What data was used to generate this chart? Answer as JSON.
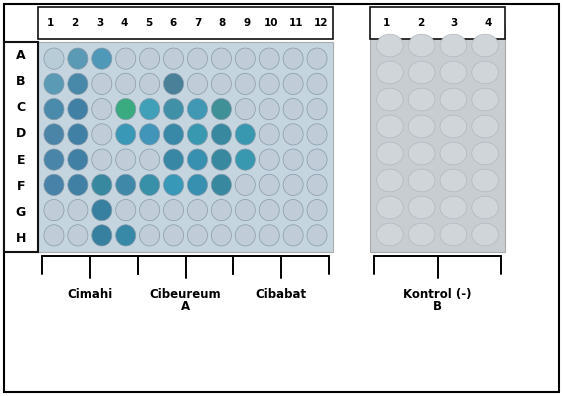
{
  "fig_width": 5.63,
  "fig_height": 3.96,
  "bg_color": "#ffffff",
  "col_labels_a": [
    "1",
    "2",
    "3",
    "4",
    "5",
    "6",
    "7",
    "8",
    "9",
    "10",
    "11",
    "12"
  ],
  "col_labels_b": [
    "1",
    "2",
    "3",
    "4"
  ],
  "row_labels": [
    "A",
    "B",
    "C",
    "D",
    "E",
    "F",
    "G",
    "H"
  ],
  "plate_a_bg": "#c5d5df",
  "plate_b_bg": "#c8cdd2",
  "well_colors_a": [
    [
      "#b8ccd8",
      "#5a9ab5",
      "#5098b8",
      "#c0cdd8",
      "#c0cdd8",
      "#c0cdd8",
      "#c0cdd8",
      "#c0cdd8",
      "#c0cdd8",
      "#c0cdd8",
      "#c0cdd8",
      "#c0cdd8"
    ],
    [
      "#5a9ab5",
      "#4888a8",
      "#c0cdd8",
      "#c0cdd8",
      "#c0cdd8",
      "#4a8098",
      "#c0cdd8",
      "#c0cdd8",
      "#c0cdd8",
      "#c0cdd8",
      "#c0cdd8",
      "#c0cdd8"
    ],
    [
      "#4a8aaa",
      "#4080a5",
      "#c0cdd8",
      "#3aaa80",
      "#40a0b8",
      "#4090a8",
      "#4098b5",
      "#409098",
      "#c0cdd8",
      "#c0cdd8",
      "#c0cdd8",
      "#c0cdd8"
    ],
    [
      "#4a85a8",
      "#4080a5",
      "#c0cdd8",
      "#3898b5",
      "#4095b8",
      "#3888a8",
      "#3898b0",
      "#3888a0",
      "#3898b0",
      "#c0cdd8",
      "#c0cdd8",
      "#c0cdd8"
    ],
    [
      "#4885a8",
      "#4080a5",
      "#c0cdd8",
      "#c0cdd8",
      "#c0cdd8",
      "#3888a5",
      "#3890b0",
      "#3888a0",
      "#3898b0",
      "#c0cdd8",
      "#c0cdd8",
      "#c0cdd8"
    ],
    [
      "#4882a8",
      "#4080a5",
      "#3888a0",
      "#4088a8",
      "#3890a8",
      "#3898b8",
      "#3890b0",
      "#3888a0",
      "#c0cdd8",
      "#c0cdd8",
      "#c0cdd8",
      "#c0cdd8"
    ],
    [
      "#c0cdd8",
      "#c0cdd8",
      "#3880a0",
      "#c0cdd8",
      "#c0cdd8",
      "#c0cdd8",
      "#c0cdd8",
      "#c0cdd8",
      "#c0cdd8",
      "#c0cdd8",
      "#c0cdd8",
      "#c0cdd8"
    ],
    [
      "#c0cdd8",
      "#c0cdd8",
      "#3880a0",
      "#3888a8",
      "#c0cdd8",
      "#c0cdd8",
      "#c0cdd8",
      "#c0cdd8",
      "#c0cdd8",
      "#c0cdd8",
      "#c0cdd8",
      "#c0cdd8"
    ]
  ],
  "well_color_b": "#d0d5da",
  "well_edge_b": "#b0b8c0",
  "group_labels": [
    "Cimahi",
    "Cibeureum",
    "Cibabat",
    "Kontrol (-)"
  ],
  "group_subs": [
    "",
    "A",
    "",
    "B"
  ],
  "label_fontsize": 8.5,
  "rowcol_fontsize": 7.5
}
